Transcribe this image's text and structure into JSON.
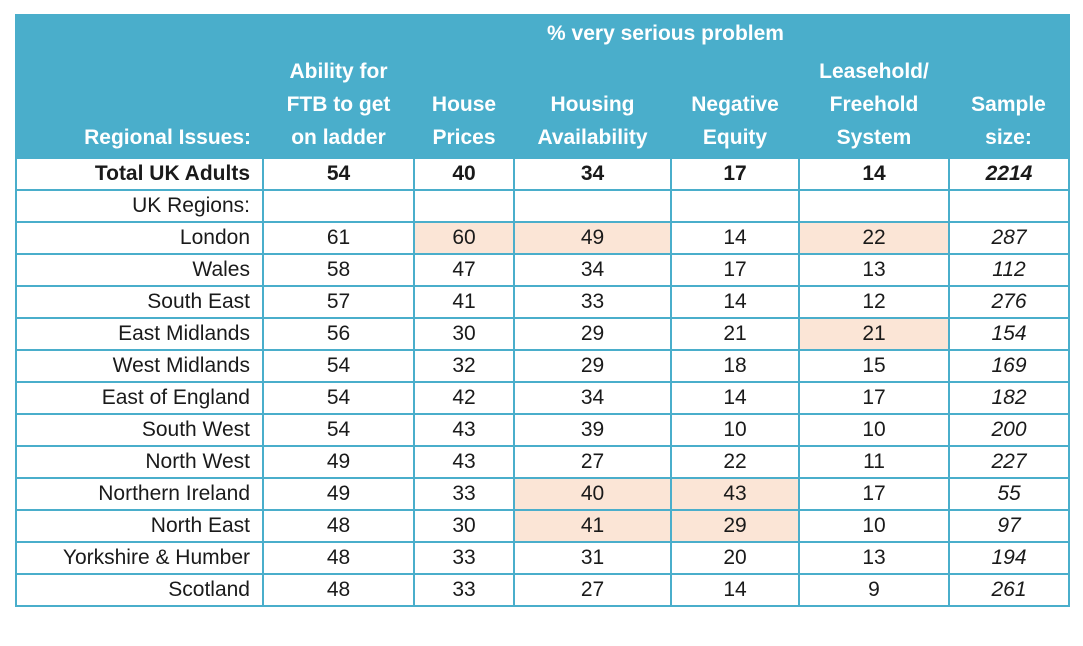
{
  "colors": {
    "header_bg": "#4aaecb",
    "border": "#4aaecb",
    "highlight": "#fbe5d6",
    "header_text": "#ffffff"
  },
  "chart_data": {
    "type": "table",
    "title": "% very serious problem",
    "row_header": "Regional Issues:",
    "columns": [
      {
        "label": "Ability for FTB to get on ladder",
        "lines": [
          "Ability for",
          "FTB to get",
          "on ladder"
        ]
      },
      {
        "label": "House Prices",
        "lines": [
          "House",
          "Prices"
        ]
      },
      {
        "label": "Housing Availability",
        "lines": [
          "Housing",
          "Availability"
        ]
      },
      {
        "label": "Negative Equity",
        "lines": [
          "Negative",
          "Equity"
        ]
      },
      {
        "label": "Leasehold/ Freehold System",
        "lines": [
          "Leasehold/",
          "Freehold",
          "System"
        ]
      },
      {
        "label": "Sample size:",
        "lines": [
          "Sample",
          "size:"
        ]
      }
    ],
    "total": {
      "label": "Total UK Adults",
      "values": [
        "54",
        "40",
        "34",
        "17",
        "14",
        "2214"
      ]
    },
    "section_label": "UK Regions:",
    "rows": [
      {
        "label": "London",
        "values": [
          "61",
          "60",
          "49",
          "14",
          "22",
          "287"
        ],
        "highlight": [
          1,
          2,
          4
        ]
      },
      {
        "label": "Wales",
        "values": [
          "58",
          "47",
          "34",
          "17",
          "13",
          "112"
        ],
        "highlight": []
      },
      {
        "label": "South East",
        "values": [
          "57",
          "41",
          "33",
          "14",
          "12",
          "276"
        ],
        "highlight": []
      },
      {
        "label": "East Midlands",
        "values": [
          "56",
          "30",
          "29",
          "21",
          "21",
          "154"
        ],
        "highlight": [
          4
        ]
      },
      {
        "label": "West Midlands",
        "values": [
          "54",
          "32",
          "29",
          "18",
          "15",
          "169"
        ],
        "highlight": []
      },
      {
        "label": "East of England",
        "values": [
          "54",
          "42",
          "34",
          "14",
          "17",
          "182"
        ],
        "highlight": []
      },
      {
        "label": "South West",
        "values": [
          "54",
          "43",
          "39",
          "10",
          "10",
          "200"
        ],
        "highlight": []
      },
      {
        "label": "North West",
        "values": [
          "49",
          "43",
          "27",
          "22",
          "11",
          "227"
        ],
        "highlight": []
      },
      {
        "label": "Northern Ireland",
        "values": [
          "49",
          "33",
          "40",
          "43",
          "17",
          "55"
        ],
        "highlight": [
          2,
          3
        ]
      },
      {
        "label": "North East",
        "values": [
          "48",
          "30",
          "41",
          "29",
          "10",
          "97"
        ],
        "highlight": [
          2,
          3
        ]
      },
      {
        "label": "Yorkshire & Humber",
        "values": [
          "48",
          "33",
          "31",
          "20",
          "13",
          "194"
        ],
        "highlight": []
      },
      {
        "label": "Scotland",
        "values": [
          "48",
          "33",
          "27",
          "14",
          "9",
          "261"
        ],
        "highlight": []
      }
    ]
  }
}
